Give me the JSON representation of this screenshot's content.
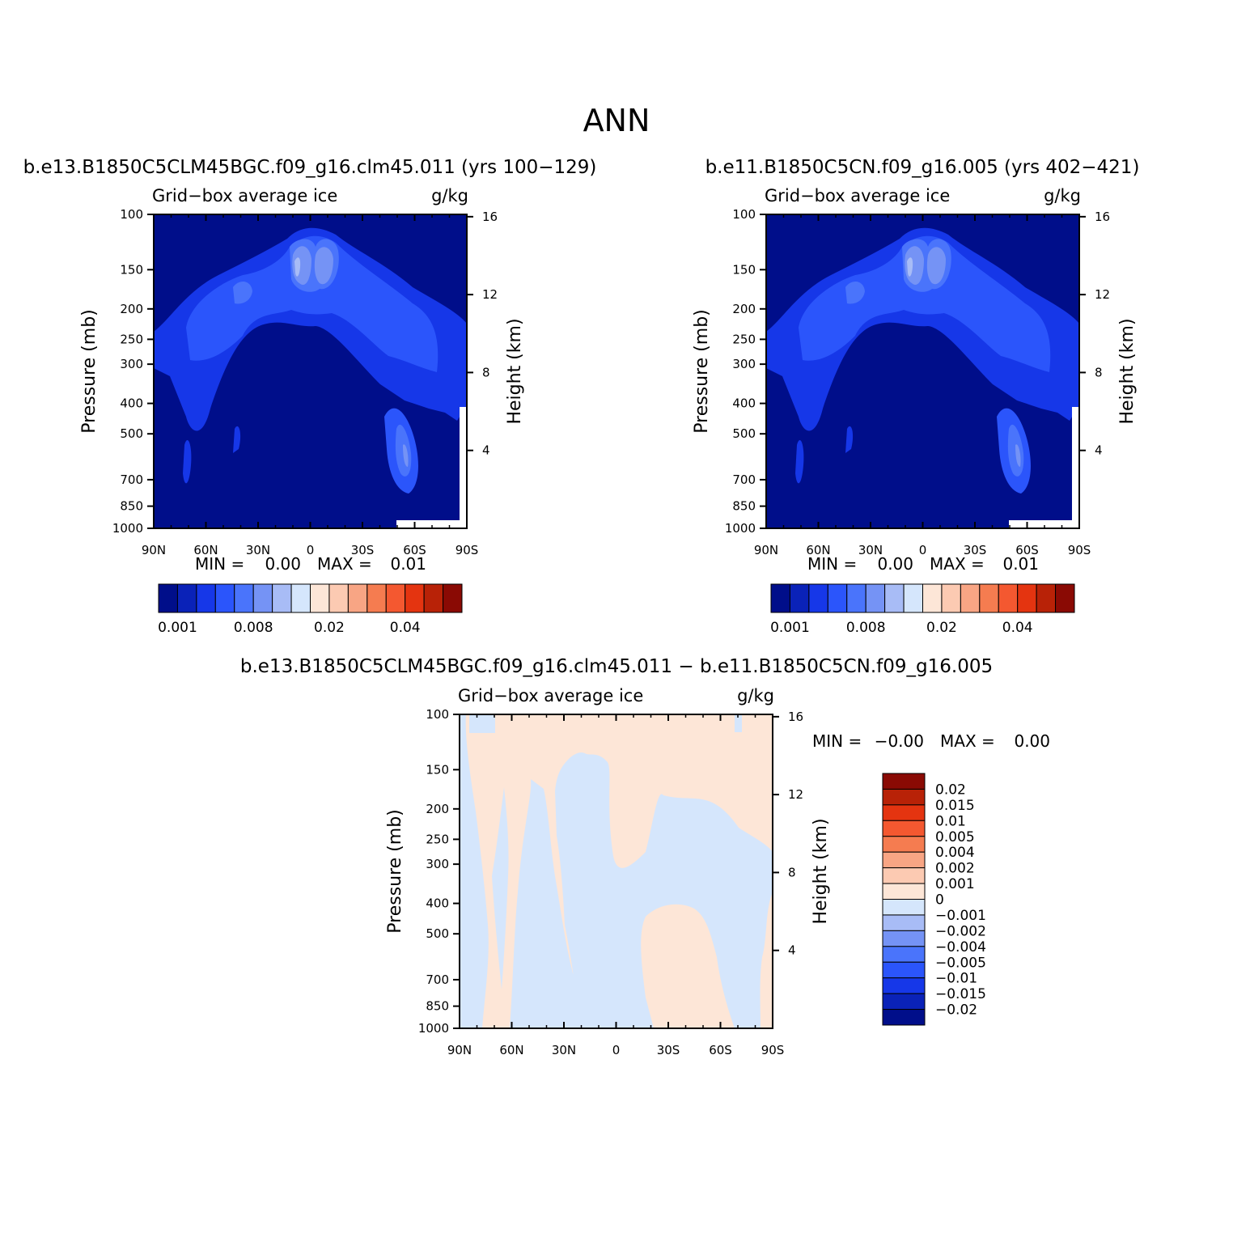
{
  "figure": {
    "title": "ANN"
  },
  "colors": {
    "abs_levels": [
      "#000e8a",
      "#0a22b8",
      "#1637e8",
      "#2b55fb",
      "#4a74fb",
      "#7593f5",
      "#a8bcf6",
      "#d5e6fc",
      "#fde6d7",
      "#fccab2",
      "#f8a584",
      "#f57c50",
      "#f45830",
      "#e43410",
      "#b82207",
      "#8a0a04"
    ],
    "diff_levels": [
      "#000e8a",
      "#0a22b8",
      "#1637e8",
      "#2b55fb",
      "#4a74fb",
      "#7593f5",
      "#a8bcf6",
      "#d5e6fc",
      "#fde6d7",
      "#fccab2",
      "#f8a584",
      "#f57c50",
      "#f45830",
      "#e43410",
      "#b82207",
      "#8a0a04"
    ],
    "field_bg": "#000e8a",
    "diff_pos": "#fde6d7",
    "diff_neg": "#d5e6fc"
  },
  "panels": {
    "p1": {
      "title": "b.e13.B1850C5CLM45BGC.f09_g16.clm45.011 (yrs 100−129)",
      "left_label": "Grid−box average ice",
      "right_label": "g/kg",
      "ylabel": "Pressure (mb)",
      "y2label": "Height (km)",
      "minmax": {
        "min_label": "MIN =",
        "min_value": "0.00",
        "max_label": "MAX =",
        "max_value": "0.01"
      }
    },
    "p2": {
      "title": "b.e11.B1850C5CN.f09_g16.005 (yrs 402−421)",
      "left_label": "Grid−box average ice",
      "right_label": "g/kg",
      "ylabel": "Pressure (mb)",
      "y2label": "Height (km)",
      "minmax": {
        "min_label": "MIN =",
        "min_value": "0.00",
        "max_label": "MAX =",
        "max_value": "0.01"
      }
    },
    "p3": {
      "title": "b.e13.B1850C5CLM45BGC.f09_g16.clm45.011 − b.e11.B1850C5CN.f09_g16.005",
      "left_label": "Grid−box average ice",
      "right_label": "g/kg",
      "ylabel": "Pressure (mb)",
      "y2label": "Height (km)",
      "minmax": {
        "min_label": "MIN =",
        "min_value": "−0.00",
        "max_label": "MAX =",
        "max_value": "0.00"
      }
    }
  },
  "colorbar_abs_labels": [
    "0.001",
    "0.008",
    "0.02",
    "0.04"
  ],
  "colorbar_diff_labels": [
    "0.02",
    "0.015",
    "0.01",
    "0.005",
    "0.004",
    "0.002",
    "0.001",
    "0",
    "−0.001",
    "−0.002",
    "−0.004",
    "−0.005",
    "−0.01",
    "−0.015",
    "−0.02"
  ],
  "chart_data": [
    {
      "type": "heatmap",
      "title": "b.e13.B1850C5CLM45BGC.f09_g16.clm45.011 (yrs 100−129)",
      "xlabel": "",
      "ylabel": "Pressure (mb)",
      "y2label": "Height (km)",
      "x_ticks": [
        "90N",
        "60N",
        "30N",
        "0",
        "30S",
        "60S",
        "90S"
      ],
      "y_ticks": [
        100,
        150,
        200,
        250,
        300,
        400,
        500,
        700,
        850,
        1000
      ],
      "y2_ticks": [
        16,
        12,
        8,
        4
      ],
      "ylim": [
        100,
        1000
      ],
      "y_scale": "log",
      "min": 0.0,
      "max": 0.01
    },
    {
      "type": "heatmap",
      "title": "b.e11.B1850C5CN.f09_g16.005 (yrs 402−421)",
      "xlabel": "",
      "ylabel": "Pressure (mb)",
      "y2label": "Height (km)",
      "x_ticks": [
        "90N",
        "60N",
        "30N",
        "0",
        "30S",
        "60S",
        "90S"
      ],
      "y_ticks": [
        100,
        150,
        200,
        250,
        300,
        400,
        500,
        700,
        850,
        1000
      ],
      "y2_ticks": [
        16,
        12,
        8,
        4
      ],
      "ylim": [
        100,
        1000
      ],
      "y_scale": "log",
      "min": 0.0,
      "max": 0.01
    },
    {
      "type": "heatmap",
      "title": "b.e13.B1850C5CLM45BGC.f09_g16.clm45.011 − b.e11.B1850C5CN.f09_g16.005",
      "xlabel": "",
      "ylabel": "Pressure (mb)",
      "y2label": "Height (km)",
      "x_ticks": [
        "90N",
        "60N",
        "30N",
        "0",
        "30S",
        "60S",
        "90S"
      ],
      "y_ticks": [
        100,
        150,
        200,
        250,
        300,
        400,
        500,
        700,
        850,
        1000
      ],
      "y2_ticks": [
        16,
        12,
        8,
        4
      ],
      "ylim": [
        100,
        1000
      ],
      "y_scale": "log",
      "min": -0.0,
      "max": 0.0
    }
  ]
}
